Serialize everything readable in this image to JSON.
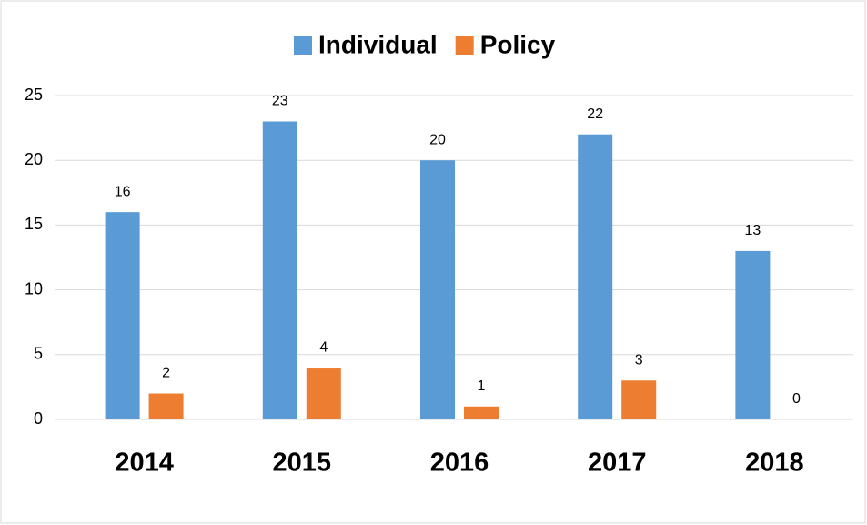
{
  "chart_data": {
    "type": "bar",
    "categories": [
      "2014",
      "2015",
      "2016",
      "2017",
      "2018"
    ],
    "series": [
      {
        "name": "Individual",
        "color": "#5b9bd5",
        "values": [
          16,
          23,
          20,
          22,
          13
        ]
      },
      {
        "name": "Policy",
        "color": "#ed7d31",
        "values": [
          2,
          4,
          1,
          3,
          0
        ]
      }
    ],
    "ylim": [
      0,
      25
    ],
    "yticks": [
      0,
      5,
      10,
      15,
      20,
      25
    ],
    "grid": true,
    "legend": "top"
  }
}
